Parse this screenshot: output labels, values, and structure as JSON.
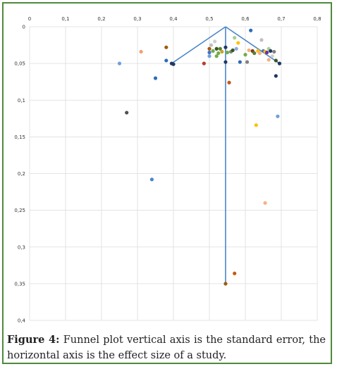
{
  "chart_data": {
    "type": "scatter",
    "title": "",
    "xlabel": "",
    "ylabel": "",
    "xlim": [
      0,
      0.8
    ],
    "ylim": [
      0,
      0.4
    ],
    "y_inverted": true,
    "x_ticks": [
      "0",
      "0,1",
      "0,2",
      "0,3",
      "0,4",
      "0,5",
      "0,6",
      "0,7",
      "0,8"
    ],
    "y_ticks": [
      "0",
      "0,05",
      "0,1",
      "0,15",
      "0,2",
      "0,25",
      "0,3",
      "0,35",
      "0,4"
    ],
    "grid": "vertical-and-horizontal",
    "funnel": {
      "apex": [
        0.545,
        0.0
      ],
      "left_base": [
        0.395,
        0.05
      ],
      "right_base": [
        0.695,
        0.05
      ],
      "center_x": 0.545,
      "center_bottom_y": 0.35,
      "color": "#4a86c8"
    },
    "points": [
      {
        "x": 0.25,
        "y": 0.05,
        "color": "#6ea0dc"
      },
      {
        "x": 0.31,
        "y": 0.034,
        "color": "#f0a070"
      },
      {
        "x": 0.38,
        "y": 0.028,
        "color": "#a05a10"
      },
      {
        "x": 0.38,
        "y": 0.046,
        "color": "#2e6cb8"
      },
      {
        "x": 0.395,
        "y": 0.05,
        "color": "#203864"
      },
      {
        "x": 0.4,
        "y": 0.051,
        "color": "#203864"
      },
      {
        "x": 0.35,
        "y": 0.07,
        "color": "#2e6cb8"
      },
      {
        "x": 0.27,
        "y": 0.117,
        "color": "#505050"
      },
      {
        "x": 0.34,
        "y": 0.208,
        "color": "#4a86c8"
      },
      {
        "x": 0.485,
        "y": 0.05,
        "color": "#c0392b"
      },
      {
        "x": 0.5,
        "y": 0.03,
        "color": "#a05a10"
      },
      {
        "x": 0.5,
        "y": 0.035,
        "color": "#4472c4"
      },
      {
        "x": 0.5,
        "y": 0.04,
        "color": "#6ea0dc"
      },
      {
        "x": 0.505,
        "y": 0.025,
        "color": "#c0c0c0"
      },
      {
        "x": 0.51,
        "y": 0.033,
        "color": "#70ad47"
      },
      {
        "x": 0.515,
        "y": 0.02,
        "color": "#d0d0d0"
      },
      {
        "x": 0.52,
        "y": 0.03,
        "color": "#375623"
      },
      {
        "x": 0.525,
        "y": 0.036,
        "color": "#70ad47"
      },
      {
        "x": 0.52,
        "y": 0.04,
        "color": "#70ad47"
      },
      {
        "x": 0.53,
        "y": 0.03,
        "color": "#548235"
      },
      {
        "x": 0.535,
        "y": 0.034,
        "color": "#c9a227"
      },
      {
        "x": 0.545,
        "y": 0.028,
        "color": "#203864"
      },
      {
        "x": 0.545,
        "y": 0.048,
        "color": "#203864"
      },
      {
        "x": 0.55,
        "y": 0.035,
        "color": "#70ad47"
      },
      {
        "x": 0.56,
        "y": 0.034,
        "color": "#808080"
      },
      {
        "x": 0.565,
        "y": 0.032,
        "color": "#375623"
      },
      {
        "x": 0.57,
        "y": 0.015,
        "color": "#a9d18e"
      },
      {
        "x": 0.575,
        "y": 0.03,
        "color": "#8faadc"
      },
      {
        "x": 0.58,
        "y": 0.022,
        "color": "#ffc000"
      },
      {
        "x": 0.585,
        "y": 0.048,
        "color": "#2e6cb8"
      },
      {
        "x": 0.6,
        "y": 0.038,
        "color": "#70ad47"
      },
      {
        "x": 0.605,
        "y": 0.048,
        "color": "#808080"
      },
      {
        "x": 0.61,
        "y": 0.032,
        "color": "#f4b183"
      },
      {
        "x": 0.615,
        "y": 0.005,
        "color": "#2e6cb8"
      },
      {
        "x": 0.62,
        "y": 0.033,
        "color": "#843c0c"
      },
      {
        "x": 0.625,
        "y": 0.036,
        "color": "#548235"
      },
      {
        "x": 0.635,
        "y": 0.033,
        "color": "#ffc000"
      },
      {
        "x": 0.64,
        "y": 0.036,
        "color": "#f4b183"
      },
      {
        "x": 0.645,
        "y": 0.018,
        "color": "#c0c0c0"
      },
      {
        "x": 0.65,
        "y": 0.033,
        "color": "#4472c4"
      },
      {
        "x": 0.655,
        "y": 0.034,
        "color": "#ffc000"
      },
      {
        "x": 0.66,
        "y": 0.035,
        "color": "#7030a0"
      },
      {
        "x": 0.665,
        "y": 0.03,
        "color": "#a9d18e"
      },
      {
        "x": 0.665,
        "y": 0.045,
        "color": "#f4b183"
      },
      {
        "x": 0.67,
        "y": 0.033,
        "color": "#203864"
      },
      {
        "x": 0.675,
        "y": 0.04,
        "color": "#d0d0d0"
      },
      {
        "x": 0.68,
        "y": 0.034,
        "color": "#808080"
      },
      {
        "x": 0.685,
        "y": 0.046,
        "color": "#375623"
      },
      {
        "x": 0.695,
        "y": 0.05,
        "color": "#203864"
      },
      {
        "x": 0.685,
        "y": 0.067,
        "color": "#203864"
      },
      {
        "x": 0.555,
        "y": 0.076,
        "color": "#c55a11"
      },
      {
        "x": 0.69,
        "y": 0.122,
        "color": "#6ea0dc"
      },
      {
        "x": 0.63,
        "y": 0.134,
        "color": "#ffc000"
      },
      {
        "x": 0.655,
        "y": 0.24,
        "color": "#f4b183"
      },
      {
        "x": 0.57,
        "y": 0.336,
        "color": "#c55a11"
      },
      {
        "x": 0.545,
        "y": 0.35,
        "color": "#a05a10"
      }
    ]
  },
  "caption": {
    "label": "Figure 4:",
    "text": " Funnel plot vertical axis is the standard error, the horizontal axis is the effect size of a study."
  }
}
